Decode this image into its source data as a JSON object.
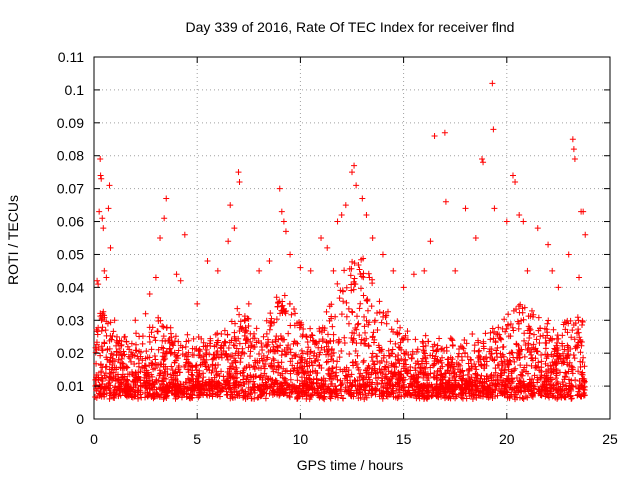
{
  "chart_data": {
    "type": "scatter",
    "title": "Day 339 of 2016, Rate Of TEC Index for receiver flnd",
    "xlabel": "GPS time / hours",
    "ylabel": "ROTI / TECUs",
    "xlim": [
      0,
      25
    ],
    "ylim": [
      0,
      0.11
    ],
    "xticks": [
      0,
      5,
      10,
      15,
      20,
      25
    ],
    "xtick_labels": [
      "0",
      "5",
      "10",
      "15",
      "20",
      "25"
    ],
    "yticks": [
      0,
      0.01,
      0.02,
      0.03,
      0.04,
      0.05,
      0.06,
      0.07,
      0.08,
      0.09,
      0.1,
      0.11
    ],
    "ytick_labels": [
      "0",
      "0.01",
      "0.02",
      "0.03",
      "0.04",
      "0.05",
      "0.06",
      "0.07",
      "0.08",
      "0.09",
      "0.1",
      "0.11"
    ],
    "grid": true,
    "marker": "+",
    "color": "#ff0000",
    "series": [
      {
        "name": "ROTI",
        "points": [
          [
            0.1,
            0.012
          ],
          [
            0.15,
            0.042
          ],
          [
            0.2,
            0.041
          ],
          [
            0.25,
            0.063
          ],
          [
            0.3,
            0.079
          ],
          [
            0.32,
            0.074
          ],
          [
            0.35,
            0.073
          ],
          [
            0.4,
            0.061
          ],
          [
            0.45,
            0.058
          ],
          [
            0.5,
            0.045
          ],
          [
            0.6,
            0.043
          ],
          [
            0.7,
            0.064
          ],
          [
            0.75,
            0.071
          ],
          [
            0.8,
            0.052
          ],
          [
            1.0,
            0.03
          ],
          [
            1.5,
            0.025
          ],
          [
            2.0,
            0.03
          ],
          [
            2.5,
            0.032
          ],
          [
            2.7,
            0.038
          ],
          [
            3.0,
            0.043
          ],
          [
            3.2,
            0.055
          ],
          [
            3.4,
            0.061
          ],
          [
            3.5,
            0.067
          ],
          [
            4.0,
            0.044
          ],
          [
            4.2,
            0.042
          ],
          [
            4.4,
            0.056
          ],
          [
            5.0,
            0.035
          ],
          [
            5.5,
            0.048
          ],
          [
            6.0,
            0.045
          ],
          [
            6.5,
            0.054
          ],
          [
            6.6,
            0.065
          ],
          [
            6.8,
            0.058
          ],
          [
            7.0,
            0.075
          ],
          [
            7.05,
            0.072
          ],
          [
            7.5,
            0.035
          ],
          [
            8.0,
            0.045
          ],
          [
            8.5,
            0.048
          ],
          [
            9.0,
            0.07
          ],
          [
            9.1,
            0.063
          ],
          [
            9.2,
            0.06
          ],
          [
            9.3,
            0.057
          ],
          [
            9.5,
            0.05
          ],
          [
            10.0,
            0.046
          ],
          [
            10.5,
            0.045
          ],
          [
            11.0,
            0.055
          ],
          [
            11.3,
            0.052
          ],
          [
            11.6,
            0.045
          ],
          [
            11.8,
            0.06
          ],
          [
            12.0,
            0.062
          ],
          [
            12.2,
            0.065
          ],
          [
            12.5,
            0.075
          ],
          [
            12.6,
            0.077
          ],
          [
            12.7,
            0.071
          ],
          [
            13.0,
            0.067
          ],
          [
            13.2,
            0.062
          ],
          [
            13.5,
            0.055
          ],
          [
            14.0,
            0.05
          ],
          [
            14.5,
            0.045
          ],
          [
            15.0,
            0.04
          ],
          [
            15.5,
            0.044
          ],
          [
            16.0,
            0.045
          ],
          [
            16.3,
            0.054
          ],
          [
            16.5,
            0.086
          ],
          [
            17.0,
            0.087
          ],
          [
            17.05,
            0.066
          ],
          [
            17.5,
            0.045
          ],
          [
            18.0,
            0.064
          ],
          [
            18.5,
            0.055
          ],
          [
            18.8,
            0.079
          ],
          [
            18.85,
            0.078
          ],
          [
            19.3,
            0.102
          ],
          [
            19.35,
            0.088
          ],
          [
            19.4,
            0.064
          ],
          [
            20.0,
            0.06
          ],
          [
            20.3,
            0.074
          ],
          [
            20.4,
            0.072
          ],
          [
            20.6,
            0.062
          ],
          [
            20.8,
            0.06
          ],
          [
            21.0,
            0.045
          ],
          [
            21.5,
            0.058
          ],
          [
            22.0,
            0.053
          ],
          [
            22.2,
            0.045
          ],
          [
            22.5,
            0.04
          ],
          [
            23.0,
            0.05
          ],
          [
            23.2,
            0.085
          ],
          [
            23.25,
            0.082
          ],
          [
            23.3,
            0.079
          ],
          [
            23.5,
            0.043
          ],
          [
            23.6,
            0.063
          ],
          [
            23.7,
            0.063
          ],
          [
            23.8,
            0.056
          ]
        ]
      }
    ],
    "description_of_bulk": "Dense band of points spanning 0 to ~23.8 h, mostly between ~0.005 and ~0.035 TECU, with frequent spikes to 0.04-0.06 and higher activity around 11-14 h."
  }
}
